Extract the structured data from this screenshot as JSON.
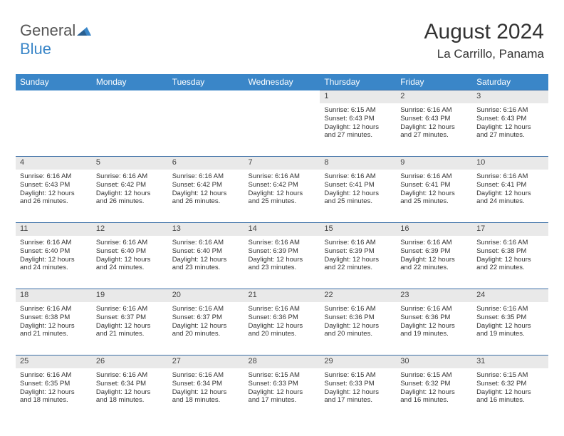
{
  "brand": {
    "name1": "General",
    "name2": "Blue"
  },
  "title": "August 2024",
  "location": "La Carrillo, Panama",
  "colors": {
    "header_bg": "#3a86c8",
    "daynum_bg": "#e9e9e9",
    "row_border": "#3a6ea5"
  },
  "dayNames": [
    "Sunday",
    "Monday",
    "Tuesday",
    "Wednesday",
    "Thursday",
    "Friday",
    "Saturday"
  ],
  "weeks": [
    [
      null,
      null,
      null,
      null,
      {
        "n": "1",
        "sr": "6:15 AM",
        "ss": "6:43 PM",
        "dl": "12 hours and 27 minutes."
      },
      {
        "n": "2",
        "sr": "6:16 AM",
        "ss": "6:43 PM",
        "dl": "12 hours and 27 minutes."
      },
      {
        "n": "3",
        "sr": "6:16 AM",
        "ss": "6:43 PM",
        "dl": "12 hours and 27 minutes."
      }
    ],
    [
      {
        "n": "4",
        "sr": "6:16 AM",
        "ss": "6:43 PM",
        "dl": "12 hours and 26 minutes."
      },
      {
        "n": "5",
        "sr": "6:16 AM",
        "ss": "6:42 PM",
        "dl": "12 hours and 26 minutes."
      },
      {
        "n": "6",
        "sr": "6:16 AM",
        "ss": "6:42 PM",
        "dl": "12 hours and 26 minutes."
      },
      {
        "n": "7",
        "sr": "6:16 AM",
        "ss": "6:42 PM",
        "dl": "12 hours and 25 minutes."
      },
      {
        "n": "8",
        "sr": "6:16 AM",
        "ss": "6:41 PM",
        "dl": "12 hours and 25 minutes."
      },
      {
        "n": "9",
        "sr": "6:16 AM",
        "ss": "6:41 PM",
        "dl": "12 hours and 25 minutes."
      },
      {
        "n": "10",
        "sr": "6:16 AM",
        "ss": "6:41 PM",
        "dl": "12 hours and 24 minutes."
      }
    ],
    [
      {
        "n": "11",
        "sr": "6:16 AM",
        "ss": "6:40 PM",
        "dl": "12 hours and 24 minutes."
      },
      {
        "n": "12",
        "sr": "6:16 AM",
        "ss": "6:40 PM",
        "dl": "12 hours and 24 minutes."
      },
      {
        "n": "13",
        "sr": "6:16 AM",
        "ss": "6:40 PM",
        "dl": "12 hours and 23 minutes."
      },
      {
        "n": "14",
        "sr": "6:16 AM",
        "ss": "6:39 PM",
        "dl": "12 hours and 23 minutes."
      },
      {
        "n": "15",
        "sr": "6:16 AM",
        "ss": "6:39 PM",
        "dl": "12 hours and 22 minutes."
      },
      {
        "n": "16",
        "sr": "6:16 AM",
        "ss": "6:39 PM",
        "dl": "12 hours and 22 minutes."
      },
      {
        "n": "17",
        "sr": "6:16 AM",
        "ss": "6:38 PM",
        "dl": "12 hours and 22 minutes."
      }
    ],
    [
      {
        "n": "18",
        "sr": "6:16 AM",
        "ss": "6:38 PM",
        "dl": "12 hours and 21 minutes."
      },
      {
        "n": "19",
        "sr": "6:16 AM",
        "ss": "6:37 PM",
        "dl": "12 hours and 21 minutes."
      },
      {
        "n": "20",
        "sr": "6:16 AM",
        "ss": "6:37 PM",
        "dl": "12 hours and 20 minutes."
      },
      {
        "n": "21",
        "sr": "6:16 AM",
        "ss": "6:36 PM",
        "dl": "12 hours and 20 minutes."
      },
      {
        "n": "22",
        "sr": "6:16 AM",
        "ss": "6:36 PM",
        "dl": "12 hours and 20 minutes."
      },
      {
        "n": "23",
        "sr": "6:16 AM",
        "ss": "6:36 PM",
        "dl": "12 hours and 19 minutes."
      },
      {
        "n": "24",
        "sr": "6:16 AM",
        "ss": "6:35 PM",
        "dl": "12 hours and 19 minutes."
      }
    ],
    [
      {
        "n": "25",
        "sr": "6:16 AM",
        "ss": "6:35 PM",
        "dl": "12 hours and 18 minutes."
      },
      {
        "n": "26",
        "sr": "6:16 AM",
        "ss": "6:34 PM",
        "dl": "12 hours and 18 minutes."
      },
      {
        "n": "27",
        "sr": "6:16 AM",
        "ss": "6:34 PM",
        "dl": "12 hours and 18 minutes."
      },
      {
        "n": "28",
        "sr": "6:15 AM",
        "ss": "6:33 PM",
        "dl": "12 hours and 17 minutes."
      },
      {
        "n": "29",
        "sr": "6:15 AM",
        "ss": "6:33 PM",
        "dl": "12 hours and 17 minutes."
      },
      {
        "n": "30",
        "sr": "6:15 AM",
        "ss": "6:32 PM",
        "dl": "12 hours and 16 minutes."
      },
      {
        "n": "31",
        "sr": "6:15 AM",
        "ss": "6:32 PM",
        "dl": "12 hours and 16 minutes."
      }
    ]
  ],
  "labels": {
    "sunrise": "Sunrise:",
    "sunset": "Sunset:",
    "daylight": "Daylight:"
  }
}
